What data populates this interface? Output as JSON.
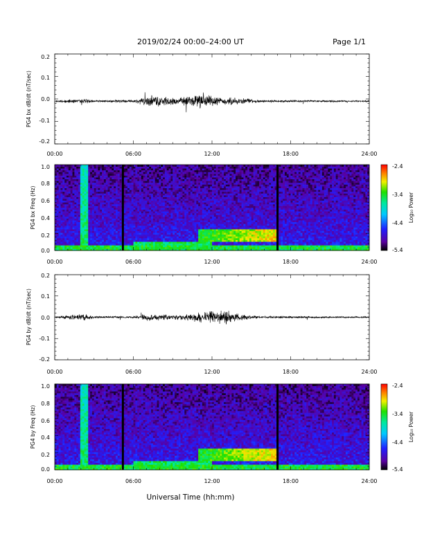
{
  "header": {
    "title": "2019/02/24  00:00–24:00 UT",
    "page": "Page 1/1"
  },
  "xlabel": "Universal Time (hh:mm)",
  "colorbar": {
    "ticks": [
      "-2.4",
      "-3.4",
      "-4.4",
      "-5.4"
    ],
    "label": "Log₁₀ Power",
    "range": [
      -5.4,
      -2.4
    ]
  },
  "chart_data": [
    {
      "type": "line",
      "ylabel": "PG4 bx dB/dt (nT/sec)",
      "xlim": [
        0,
        24
      ],
      "ylim": [
        -0.2,
        0.2
      ],
      "x_ticks": [
        "00:00",
        "06:00",
        "12:00",
        "18:00",
        "24:00"
      ],
      "y_ticks": [
        "0.2",
        "0.1",
        "0.0",
        "-0.1",
        "-0.2"
      ],
      "baseline": -0.01,
      "noise_envelope": [
        {
          "x": 0,
          "amp": 0.004
        },
        {
          "x": 2.3,
          "amp": 0.01
        },
        {
          "x": 3,
          "amp": 0.004
        },
        {
          "x": 6,
          "amp": 0.006
        },
        {
          "x": 7.5,
          "amp": 0.025
        },
        {
          "x": 9.5,
          "amp": 0.012
        },
        {
          "x": 11,
          "amp": 0.03
        },
        {
          "x": 12.5,
          "amp": 0.015
        },
        {
          "x": 14.5,
          "amp": 0.012
        },
        {
          "x": 16,
          "amp": 0.005
        },
        {
          "x": 24,
          "amp": 0.003
        }
      ]
    },
    {
      "type": "heatmap",
      "ylabel": "PG4 bx Freq (Hz)",
      "xlim": [
        0,
        24
      ],
      "ylim": [
        0.0,
        1.0
      ],
      "x_ticks": [
        "00:00",
        "06:00",
        "12:00",
        "18:00",
        "24:00"
      ],
      "y_ticks": [
        "1.0",
        "0.8",
        "0.6",
        "0.4",
        "0.2",
        "0.0"
      ],
      "colorscale": "Log10 Power, -5.4 to -2.4",
      "data_gaps_hours": [
        5.2,
        17.0
      ],
      "features": [
        {
          "kind": "vertical_band",
          "x": 2.3,
          "level": -3.6
        },
        {
          "kind": "enhancement",
          "x_range": [
            11,
            17
          ],
          "freq_range": [
            0.1,
            0.25
          ],
          "level": -2.8
        },
        {
          "kind": "low_freq",
          "x_range": [
            6,
            12
          ],
          "freq_range": [
            0.0,
            0.1
          ],
          "level": -3.6
        }
      ]
    },
    {
      "type": "line",
      "ylabel": "PG4 by dB/dt (nT/sec)",
      "xlim": [
        0,
        24
      ],
      "ylim": [
        -0.2,
        0.2
      ],
      "x_ticks": [
        "00:00",
        "06:00",
        "12:00",
        "18:00",
        "24:00"
      ],
      "y_ticks": [
        "0.2",
        "0.1",
        "0.0",
        "-0.1",
        "-0.2"
      ],
      "baseline": 0.0,
      "noise_envelope": [
        {
          "x": 0,
          "amp": 0.004
        },
        {
          "x": 2.3,
          "amp": 0.015
        },
        {
          "x": 3,
          "amp": 0.004
        },
        {
          "x": 6,
          "amp": 0.005
        },
        {
          "x": 7,
          "amp": 0.015
        },
        {
          "x": 9,
          "amp": 0.01
        },
        {
          "x": 11,
          "amp": 0.02
        },
        {
          "x": 13,
          "amp": 0.03
        },
        {
          "x": 14.5,
          "amp": 0.01
        },
        {
          "x": 16,
          "amp": 0.005
        },
        {
          "x": 24,
          "amp": 0.003
        }
      ]
    },
    {
      "type": "heatmap",
      "ylabel": "PG4 by Freq (Hz)",
      "xlim": [
        0,
        24
      ],
      "ylim": [
        0.0,
        1.0
      ],
      "x_ticks": [
        "00:00",
        "06:00",
        "12:00",
        "18:00",
        "24:00"
      ],
      "y_ticks": [
        "1.0",
        "0.8",
        "0.6",
        "0.4",
        "0.2",
        "0.0"
      ],
      "colorscale": "Log10 Power, -5.4 to -2.4",
      "data_gaps_hours": [
        5.2,
        17.0
      ],
      "features": [
        {
          "kind": "vertical_band",
          "x": 2.3,
          "level": -3.6
        },
        {
          "kind": "enhancement",
          "x_range": [
            11,
            17
          ],
          "freq_range": [
            0.1,
            0.25
          ],
          "level": -2.8
        },
        {
          "kind": "low_freq",
          "x_range": [
            6,
            12
          ],
          "freq_range": [
            0.0,
            0.1
          ],
          "level": -3.6
        }
      ]
    }
  ]
}
